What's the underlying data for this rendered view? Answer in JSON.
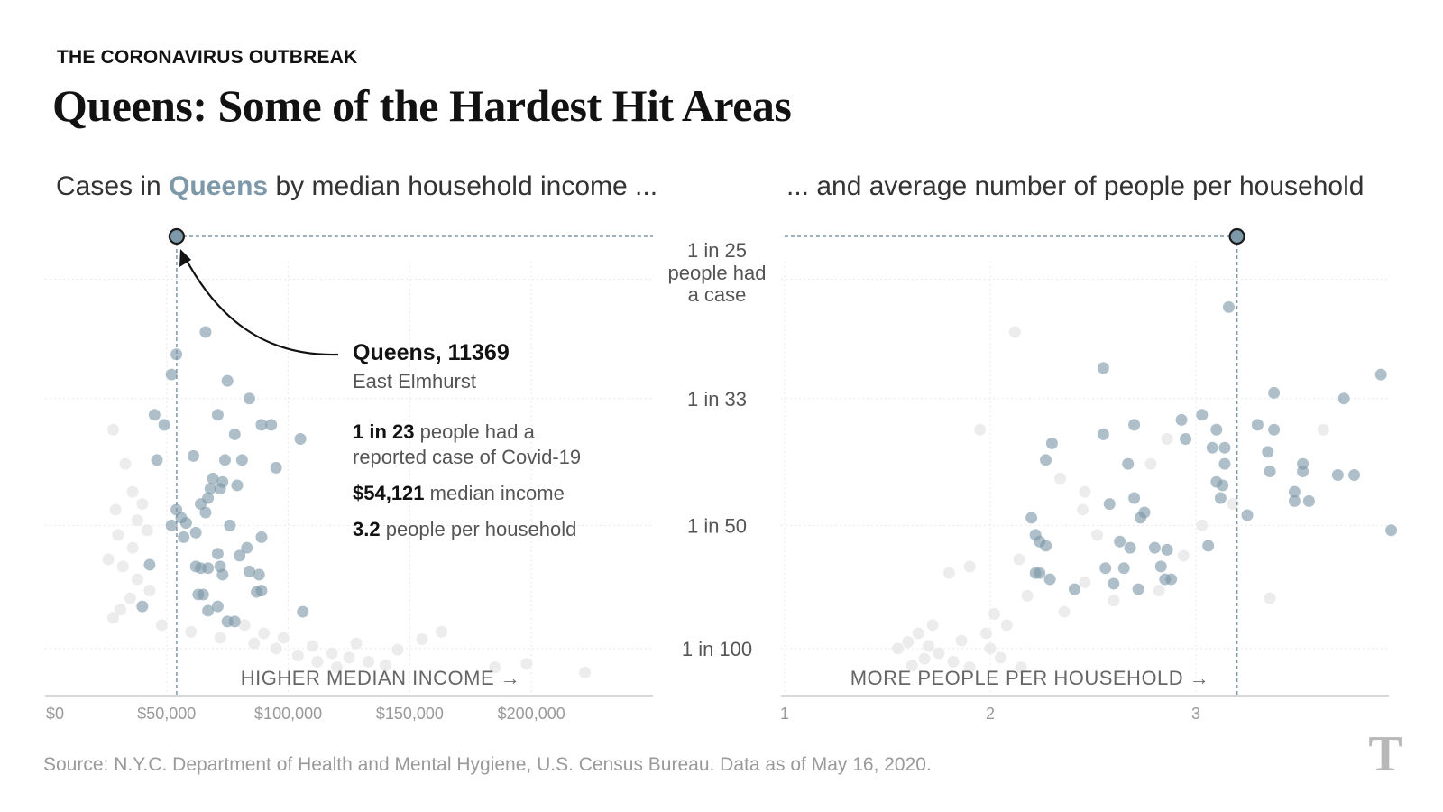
{
  "kicker": "THE CORONAVIRUS OUTBREAK",
  "headline": "Queens: Some of the Hardest Hit Areas",
  "subtitle_left": {
    "pre": "Cases in ",
    "highlight": "Queens",
    "post": " by median household income ..."
  },
  "subtitle_right": "... and average number of people per household",
  "source": "Source: N.Y.C. Department of Health and Mental Hygiene, U.S. Census Bureau. Data as of May 16, 2020.",
  "logo": "T",
  "colors": {
    "queens_dot": "#7d98a8",
    "other_dot": "#e6e6e6",
    "highlight_fill": "#7d98a8",
    "highlight_stroke": "#1a1a1a",
    "gridline": "#e8e8e8",
    "guide": "#7d98a8"
  },
  "center_axis": {
    "ticks": [
      {
        "label": "1 in 25",
        "value": 25
      },
      {
        "label": "1 in 33",
        "value": 33
      },
      {
        "label": "1 in 50",
        "value": 50
      },
      {
        "label": "1 in 100",
        "value": 100
      }
    ],
    "top_note": [
      "people had",
      "a case"
    ]
  },
  "annotation": {
    "title": "Queens, 11369",
    "neighborhood": "East Elmhurst",
    "lines": [
      {
        "bold": "1 in 23",
        "rest": " people had a"
      },
      {
        "bold": "",
        "rest": "reported case of Covid-19"
      },
      {
        "bold": "$54,121",
        "rest": " median income"
      },
      {
        "bold": "3.2",
        "rest": " people per household"
      }
    ]
  },
  "chart_data": [
    {
      "type": "scatter",
      "title": "Cases in Queens by median household income ...",
      "xlabel": "HIGHER MEDIAN INCOME →",
      "x_ticks": [
        "$0",
        "$50,000",
        "$100,000",
        "$150,000",
        "$200,000"
      ],
      "x_tick_values": [
        0,
        50000,
        100000,
        150000,
        200000
      ],
      "xlim": [
        0,
        250000
      ],
      "y_scale": "reciprocal (1 in N)",
      "ylim": [
        23,
        160
      ],
      "highlight": {
        "name": "Queens, 11369",
        "x": 54121,
        "y": 23
      },
      "queens_points": [
        [
          66000,
          28
        ],
        [
          54000,
          29.5
        ],
        [
          52000,
          31
        ],
        [
          75000,
          31.5
        ],
        [
          84000,
          33
        ],
        [
          45000,
          34.5
        ],
        [
          71000,
          34.5
        ],
        [
          49000,
          35.5
        ],
        [
          89000,
          35.5
        ],
        [
          93000,
          35.5
        ],
        [
          78000,
          36.5
        ],
        [
          105000,
          37
        ],
        [
          61000,
          39
        ],
        [
          46000,
          39.5
        ],
        [
          74000,
          39.5
        ],
        [
          81000,
          39.5
        ],
        [
          95000,
          40.5
        ],
        [
          69000,
          42
        ],
        [
          73000,
          42.5
        ],
        [
          79000,
          43
        ],
        [
          68000,
          43.5
        ],
        [
          72000,
          43.5
        ],
        [
          67000,
          45
        ],
        [
          64000,
          46
        ],
        [
          54000,
          47
        ],
        [
          66000,
          47.5
        ],
        [
          56000,
          48.5
        ],
        [
          58000,
          49.5
        ],
        [
          52000,
          50
        ],
        [
          76000,
          50
        ],
        [
          62000,
          51.5
        ],
        [
          89000,
          52.5
        ],
        [
          57000,
          52.5
        ],
        [
          83000,
          55
        ],
        [
          71000,
          56.5
        ],
        [
          80000,
          57
        ],
        [
          43000,
          59.5
        ],
        [
          62000,
          60
        ],
        [
          72000,
          60
        ],
        [
          64000,
          60.5
        ],
        [
          67000,
          60.5
        ],
        [
          84000,
          61.5
        ],
        [
          73000,
          62.5
        ],
        [
          87000,
          68.5
        ],
        [
          89000,
          68
        ],
        [
          63000,
          69.5
        ],
        [
          65000,
          69.5
        ],
        [
          40000,
          74.5
        ],
        [
          71000,
          74.5
        ],
        [
          67000,
          76.5
        ],
        [
          106000,
          77
        ],
        [
          75000,
          82
        ],
        [
          78000,
          82
        ],
        [
          88000,
          62.5
        ]
      ],
      "other_points": [
        [
          28000,
          36
        ],
        [
          33000,
          40
        ],
        [
          36000,
          44
        ],
        [
          40000,
          46
        ],
        [
          38000,
          49
        ],
        [
          42000,
          51
        ],
        [
          36000,
          55
        ],
        [
          32000,
          60
        ],
        [
          38000,
          64
        ],
        [
          43000,
          68
        ],
        [
          35000,
          71
        ],
        [
          31000,
          76
        ],
        [
          28000,
          80
        ],
        [
          82000,
          84
        ],
        [
          90000,
          89
        ],
        [
          98000,
          92
        ],
        [
          110000,
          98
        ],
        [
          118000,
          104
        ],
        [
          125000,
          108
        ],
        [
          133000,
          112
        ],
        [
          140000,
          116
        ],
        [
          128000,
          96
        ],
        [
          145000,
          101
        ],
        [
          155000,
          93
        ],
        [
          163000,
          88
        ],
        [
          185000,
          118
        ],
        [
          198000,
          114
        ],
        [
          222000,
          124
        ],
        [
          120000,
          118
        ],
        [
          112000,
          112
        ],
        [
          104000,
          106
        ],
        [
          95000,
          100
        ],
        [
          86000,
          96
        ],
        [
          72000,
          92
        ],
        [
          60000,
          88
        ],
        [
          48000,
          84
        ],
        [
          30000,
          52
        ],
        [
          26000,
          58
        ],
        [
          29000,
          47
        ]
      ]
    },
    {
      "type": "scatter",
      "title": "... and average number of people per household",
      "xlabel": "MORE PEOPLE PER HOUSEHOLD →",
      "x_ticks": [
        "1",
        "2",
        "3"
      ],
      "x_tick_values": [
        1,
        2,
        3
      ],
      "xlim": [
        1,
        3.95
      ],
      "y_scale": "reciprocal (1 in N)",
      "ylim": [
        23,
        160
      ],
      "highlight": {
        "name": "Queens, 11369",
        "x": 3.2,
        "y": 23
      },
      "queens_points": [
        [
          3.16,
          26.5
        ],
        [
          2.55,
          30.5
        ],
        [
          3.9,
          31
        ],
        [
          3.38,
          32.5
        ],
        [
          3.72,
          33
        ],
        [
          3.03,
          34.5
        ],
        [
          2.93,
          35
        ],
        [
          2.7,
          35.5
        ],
        [
          3.3,
          35.5
        ],
        [
          3.1,
          36
        ],
        [
          3.38,
          36
        ],
        [
          2.55,
          36.5
        ],
        [
          2.3,
          37.5
        ],
        [
          2.95,
          37
        ],
        [
          3.08,
          38
        ],
        [
          3.14,
          38
        ],
        [
          3.35,
          38.5
        ],
        [
          2.27,
          39.5
        ],
        [
          2.67,
          40
        ],
        [
          3.14,
          40
        ],
        [
          3.52,
          40
        ],
        [
          3.36,
          41
        ],
        [
          3.52,
          41
        ],
        [
          3.69,
          41.5
        ],
        [
          3.77,
          41.5
        ],
        [
          3.1,
          42.5
        ],
        [
          3.13,
          43
        ],
        [
          3.48,
          44
        ],
        [
          3.12,
          45
        ],
        [
          2.7,
          45
        ],
        [
          3.48,
          45.5
        ],
        [
          3.55,
          45.5
        ],
        [
          2.58,
          46
        ],
        [
          2.75,
          47.5
        ],
        [
          3.25,
          48
        ],
        [
          2.2,
          48.5
        ],
        [
          2.73,
          48.5
        ],
        [
          3.95,
          51
        ],
        [
          2.22,
          52
        ],
        [
          2.24,
          53.5
        ],
        [
          2.63,
          53.5
        ],
        [
          2.27,
          54.5
        ],
        [
          2.68,
          55
        ],
        [
          2.8,
          55
        ],
        [
          2.86,
          55.5
        ],
        [
          3.06,
          54.5
        ],
        [
          2.56,
          60.5
        ],
        [
          2.65,
          60.5
        ],
        [
          2.22,
          62
        ],
        [
          2.83,
          60
        ],
        [
          2.24,
          62
        ],
        [
          2.29,
          64
        ],
        [
          2.85,
          64
        ],
        [
          2.88,
          64
        ],
        [
          2.6,
          65.5
        ],
        [
          2.41,
          67.5
        ],
        [
          2.72,
          67.5
        ]
      ],
      "other_points": [
        [
          1.95,
          36
        ],
        [
          2.12,
          28
        ],
        [
          1.9,
          60
        ],
        [
          1.72,
          84
        ],
        [
          1.65,
          89
        ],
        [
          1.6,
          95
        ],
        [
          1.55,
          100
        ],
        [
          1.75,
          104
        ],
        [
          1.82,
          112
        ],
        [
          1.9,
          118
        ],
        [
          1.68,
          109
        ],
        [
          1.62,
          116
        ],
        [
          2.0,
          100
        ],
        [
          2.05,
          108
        ],
        [
          2.15,
          118
        ],
        [
          1.98,
          89
        ],
        [
          2.02,
          78
        ],
        [
          1.8,
          62
        ],
        [
          2.08,
          84
        ],
        [
          1.86,
          94
        ],
        [
          1.7,
          98
        ],
        [
          2.34,
          42
        ],
        [
          2.45,
          47
        ],
        [
          2.52,
          52
        ],
        [
          2.14,
          58
        ],
        [
          2.18,
          70
        ],
        [
          2.36,
          77
        ],
        [
          2.46,
          65
        ],
        [
          2.6,
          72
        ],
        [
          2.82,
          68
        ],
        [
          2.94,
          57
        ],
        [
          3.03,
          50
        ],
        [
          3.18,
          46
        ],
        [
          2.78,
          40
        ],
        [
          2.86,
          37
        ],
        [
          3.36,
          71
        ],
        [
          3.62,
          36
        ],
        [
          2.46,
          44
        ]
      ]
    }
  ]
}
